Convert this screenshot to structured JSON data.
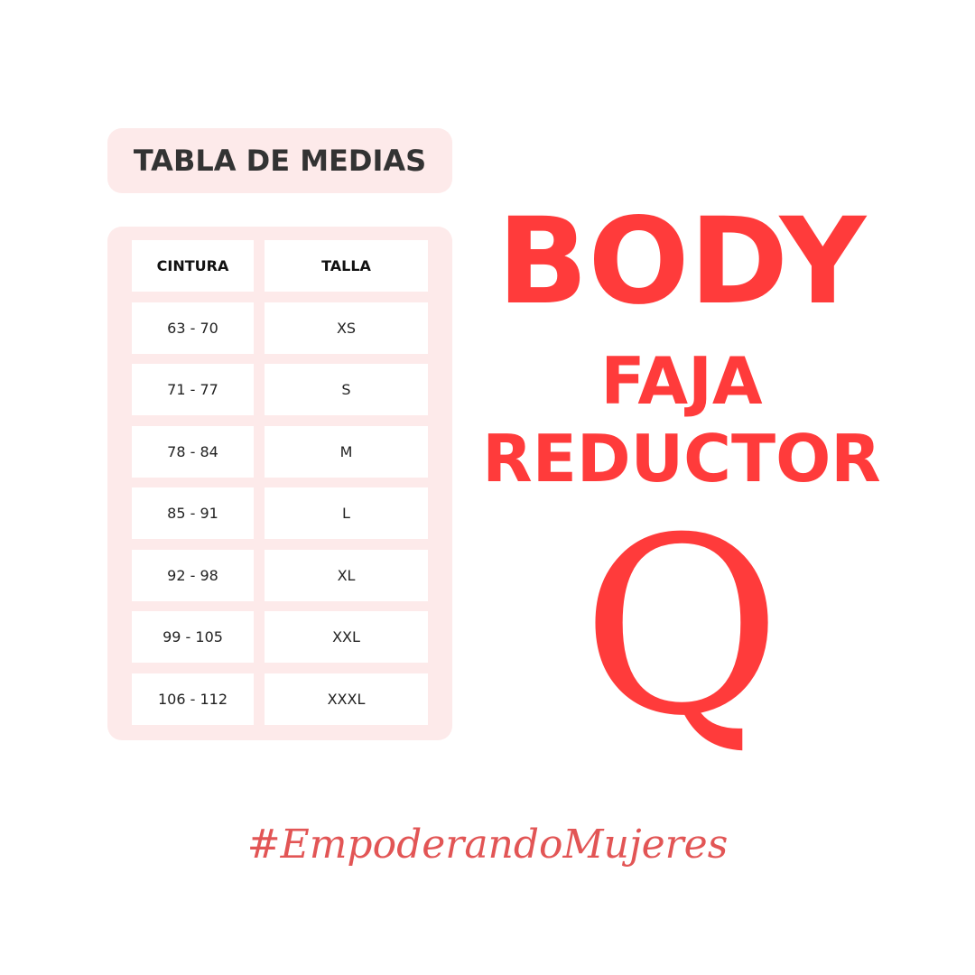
{
  "title": "TABLA DE MEDIAS",
  "table": {
    "headers": [
      "CINTURA",
      "TALLA"
    ],
    "rows": [
      [
        "63 - 70",
        "XS"
      ],
      [
        "71 - 77",
        "S"
      ],
      [
        "78 - 84",
        "M"
      ],
      [
        "85 - 91",
        "L"
      ],
      [
        "92 - 98",
        "XL"
      ],
      [
        "99 - 105",
        "XXL"
      ],
      [
        "106 - 112",
        "XXXL"
      ]
    ]
  },
  "product": {
    "line1": "BODY",
    "line2": "FAJA",
    "line3": "REDUCTOR"
  },
  "logo_letter": "Q",
  "hashtag": "#EmpoderandoMujeres",
  "colors": {
    "accent": "#ff3b3b",
    "panel": "#fdeaea",
    "title_text": "#333333"
  }
}
